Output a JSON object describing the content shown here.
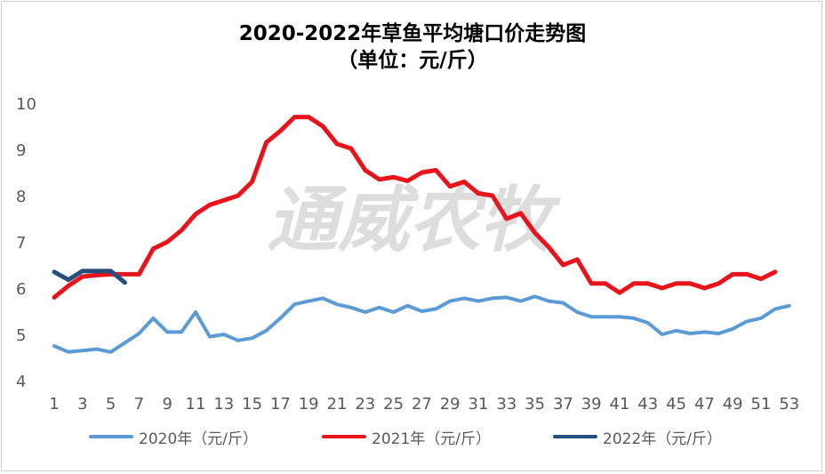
{
  "title": "2020-2022年草鱼平均塘口价走势图",
  "subtitle": "（单位：元/斤）",
  "watermark": "通威农牧",
  "colors": {
    "s2020": "#5b9bd5",
    "s2021": "#e8141b",
    "s2022": "#264f7e"
  },
  "chart_data": {
    "type": "line",
    "title": "2020-2022年草鱼平均塘口价走势图",
    "subtitle": "（单位：元/斤）",
    "ylim": [
      4,
      10
    ],
    "yticks": [
      "10",
      "9",
      "8",
      "7",
      "6",
      "5",
      "4"
    ],
    "xlim": [
      1,
      53
    ],
    "xticks": [
      "1",
      "3",
      "5",
      "7",
      "9",
      "11",
      "13",
      "15",
      "17",
      "19",
      "21",
      "23",
      "25",
      "27",
      "29",
      "31",
      "33",
      "35",
      "37",
      "39",
      "41",
      "43",
      "45",
      "47",
      "49",
      "51",
      "53"
    ],
    "grid": false,
    "legend": "bottom",
    "series": [
      {
        "name": "2020年（元/斤）",
        "color": "#5b9bd5",
        "x": [
          1,
          2,
          3,
          4,
          5,
          6,
          7,
          8,
          9,
          10,
          11,
          12,
          13,
          14,
          15,
          16,
          17,
          18,
          19,
          20,
          21,
          22,
          23,
          24,
          25,
          26,
          27,
          28,
          29,
          30,
          31,
          32,
          33,
          34,
          35,
          36,
          37,
          38,
          39,
          40,
          41,
          42,
          43,
          44,
          45,
          46,
          47,
          48,
          49,
          50,
          51,
          52,
          53
        ],
        "values": [
          4.75,
          4.62,
          4.65,
          4.68,
          4.62,
          4.82,
          5.02,
          5.35,
          5.05,
          5.05,
          5.48,
          4.95,
          5.0,
          4.87,
          4.92,
          5.08,
          5.35,
          5.65,
          5.72,
          5.78,
          5.65,
          5.58,
          5.48,
          5.58,
          5.48,
          5.62,
          5.5,
          5.55,
          5.72,
          5.78,
          5.72,
          5.78,
          5.8,
          5.72,
          5.82,
          5.72,
          5.68,
          5.48,
          5.38,
          5.38,
          5.38,
          5.35,
          5.25,
          5.0,
          5.08,
          5.02,
          5.05,
          5.02,
          5.12,
          5.28,
          5.35,
          5.55,
          5.62
        ]
      },
      {
        "name": "2021年（元/斤）",
        "color": "#e8141b",
        "x": [
          1,
          2,
          3,
          4,
          5,
          6,
          7,
          8,
          9,
          10,
          11,
          12,
          13,
          14,
          15,
          16,
          17,
          18,
          19,
          20,
          21,
          22,
          23,
          24,
          25,
          26,
          27,
          28,
          29,
          30,
          31,
          32,
          33,
          34,
          35,
          36,
          37,
          38,
          39,
          40,
          41,
          42,
          43,
          44,
          45,
          46,
          47,
          48,
          49,
          50,
          51,
          52
        ],
        "values": [
          5.8,
          6.05,
          6.25,
          6.28,
          6.3,
          6.3,
          6.3,
          6.85,
          7.0,
          7.25,
          7.6,
          7.8,
          7.9,
          8.0,
          8.3,
          9.15,
          9.4,
          9.7,
          9.7,
          9.5,
          9.12,
          9.02,
          8.55,
          8.35,
          8.4,
          8.32,
          8.5,
          8.55,
          8.2,
          8.3,
          8.05,
          8.0,
          7.5,
          7.62,
          7.2,
          6.88,
          6.5,
          6.62,
          6.1,
          6.1,
          5.9,
          6.1,
          6.1,
          6.0,
          6.1,
          6.1,
          6.0,
          6.1,
          6.3,
          6.3,
          6.2,
          6.35
        ]
      },
      {
        "name": "2022年（元/斤）",
        "color": "#264f7e",
        "x": [
          1,
          2,
          3,
          4,
          5,
          6
        ],
        "values": [
          6.35,
          6.18,
          6.37,
          6.37,
          6.37,
          6.12
        ]
      }
    ]
  }
}
